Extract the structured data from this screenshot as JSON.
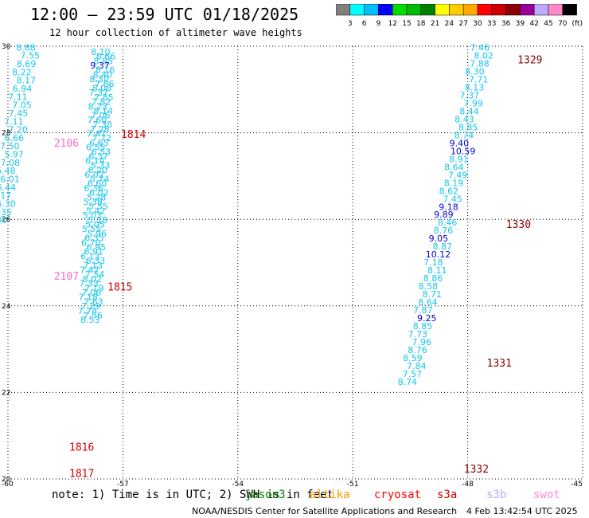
{
  "header": {
    "title": "12:00 – 23:59 UTC 01/18/2025",
    "subtitle": "12 hour collection of altimeter wave heights"
  },
  "colorbar": {
    "labels": [
      "3",
      "6",
      "9",
      "12",
      "15",
      "18",
      "21",
      "24",
      "27",
      "30",
      "33",
      "36",
      "39",
      "42",
      "45",
      "70"
    ],
    "unit": "(ft)",
    "colors": [
      "#808080",
      "#00ffff",
      "#00bfff",
      "#0000ff",
      "#00dd00",
      "#00bb00",
      "#008000",
      "#ffff00",
      "#ffcc00",
      "#ffaa00",
      "#ff0000",
      "#cc0000",
      "#8b0000",
      "#990099",
      "#bbaaff",
      "#ff88cc",
      "#000000"
    ]
  },
  "footer": {
    "note": "note: 1) Time is in UTC; 2) SWH is in feet",
    "credit": "NOAA/NESDIS Center for Satellite Applications and Research",
    "timestamp": "4 Feb 13:42:54 UTC 2025"
  },
  "missions": [
    {
      "name": "jason3",
      "color": "#008000"
    },
    {
      "name": "altika",
      "color": "#ff9900"
    },
    {
      "name": "cryosat",
      "color": "#ff0000"
    },
    {
      "name": "s3a",
      "color": "#cc0000"
    },
    {
      "name": "s3b",
      "color": "#bbaaff"
    },
    {
      "name": "swot",
      "color": "#ff88cc"
    }
  ],
  "chart_data": {
    "type": "scatter",
    "xlim": [
      -60,
      -45
    ],
    "ylim": [
      20,
      30
    ],
    "xticks": [
      "-60",
      "-57",
      "-54",
      "-51",
      "-48",
      "-45"
    ],
    "yticks": [
      "20",
      "22",
      "24",
      "26",
      "28",
      "30"
    ],
    "grid": true,
    "tracks": [
      {
        "lon": -59.45,
        "lat_start": 29.9,
        "lat_step": -0.19,
        "color": "#00bfff",
        "values": [
          "8.88",
          "7.55",
          "8.69",
          "8.22",
          "8.17",
          "6.94",
          "7.11",
          "7.05",
          "7.45",
          "7.11",
          "7.20",
          "6.66",
          "7.50",
          "5.97",
          "7.08",
          "6.48",
          "6.01",
          "6.44",
          "6.17",
          "6.30",
          "5.35",
          "5.00"
        ]
      },
      {
        "lon": -57.5,
        "lat_start": 29.8,
        "lat_step": -0.105,
        "color": "#00bfff",
        "values": [
          "8.10",
          "8.66",
          "8.85",
          "9.37",
          "8.16",
          "8.40",
          "8.30",
          "7.86",
          "8.08",
          "7.37",
          "7.85",
          "7.82",
          "8.23",
          "8.14",
          "7.06",
          "7.60",
          "7.38",
          "7.28",
          "7.47",
          "7.72",
          "6.65",
          "6.55",
          "6.53",
          "6.37",
          "6.14",
          "5.33",
          "6.20",
          "6.02",
          "5.74",
          "6.60",
          "6.36",
          "6.02",
          "5.28",
          "5.38",
          "5.55",
          "5.42",
          "5.03",
          "5.18",
          "5.05",
          "5.55",
          "5.96",
          "6.35",
          "6.70",
          "6.95",
          "6.91",
          "6.13",
          "6.33",
          "7.13",
          "7.47",
          "7.54",
          "8.02",
          "7.33",
          "7.19",
          "7.06",
          "7.18",
          "7.63",
          "7.29",
          "7.74",
          "7.56",
          "8.53"
        ]
      },
      {
        "lon": -47.6,
        "lat_start": 29.9,
        "lat_step": -0.184,
        "color": "#00bfff",
        "values": [
          "7.46",
          "8.02",
          "7.88",
          "8.30",
          "7.71",
          "8.13",
          "7.37",
          "7.99",
          "8.44",
          "8.43",
          "8.85",
          "8.74",
          "9.40",
          "10.59",
          "8.91",
          "8.64",
          "7.49",
          "8.19",
          "8.62",
          "7.45",
          "9.18",
          "9.89",
          "8.46",
          "8.76",
          "9.05",
          "8.87",
          "10.12",
          "7.18",
          "8.11",
          "8.86",
          "8.58",
          "8.71",
          "8.64",
          "7.87",
          "9.25",
          "8.85",
          "7.73",
          "7.96",
          "8.76",
          "8.59",
          "7.84",
          "7.57",
          "8.74"
        ]
      }
    ],
    "annotations": [
      {
        "text": "1329",
        "lon": -46.7,
        "lat": 29.6,
        "color": "#8b0000"
      },
      {
        "text": "1330",
        "lon": -47.0,
        "lat": 25.8,
        "color": "#8b0000"
      },
      {
        "text": "1331",
        "lon": -47.5,
        "lat": 22.6,
        "color": "#8b0000"
      },
      {
        "text": "1332",
        "lon": -48.1,
        "lat": 20.15,
        "color": "#8b0000"
      },
      {
        "text": "1814",
        "lon": -57.05,
        "lat": 27.88,
        "color": "#cc0000"
      },
      {
        "text": "1815",
        "lon": -57.4,
        "lat": 24.36,
        "color": "#cc0000"
      },
      {
        "text": "1816",
        "lon": -58.4,
        "lat": 20.65,
        "color": "#cc0000"
      },
      {
        "text": "1817",
        "lon": -58.4,
        "lat": 20.05,
        "color": "#cc0000"
      },
      {
        "text": "2106",
        "lon": -58.8,
        "lat": 27.68,
        "color": "#ff66cc"
      },
      {
        "text": "2107",
        "lon": -58.8,
        "lat": 24.6,
        "color": "#ff66cc"
      }
    ]
  }
}
